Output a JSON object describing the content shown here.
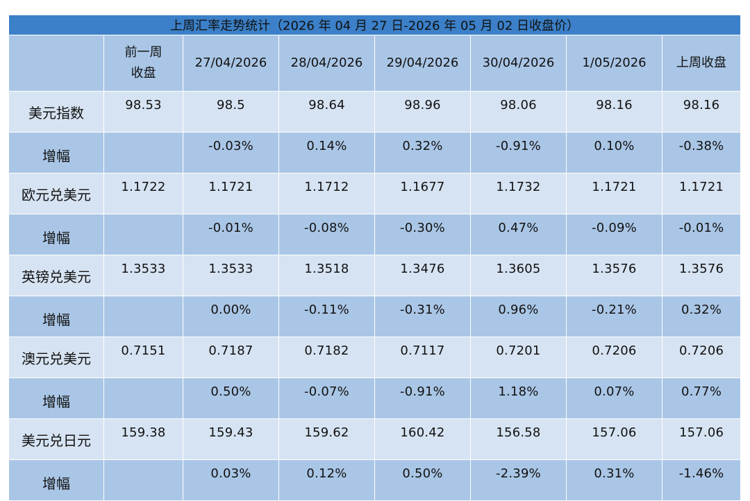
{
  "title": "上周汇率走势统计（2026 年 04 月 27 日-2026 年 05 月 02 日收盘价）",
  "columns": {
    "label": "",
    "prev_week": "前一周收盘",
    "d1": "27/04/2026",
    "d2": "28/04/2026",
    "d3": "29/04/2026",
    "d4": "30/04/2026",
    "d5": "1/05/2026",
    "last_week": "上周收盘"
  },
  "rows": {
    "r0": {
      "label": "美元指数",
      "v0": "98.53",
      "v1": "98.5",
      "v2": "98.64",
      "v3": "98.96",
      "v4": "98.06",
      "v5": "98.16",
      "v6": "98.16"
    },
    "r1": {
      "label": "增幅",
      "v0": "",
      "v1": "-0.03%",
      "v2": "0.14%",
      "v3": "0.32%",
      "v4": "-0.91%",
      "v5": "0.10%",
      "v6": "-0.38%"
    },
    "r2": {
      "label": "欧元兑美元",
      "v0": "1.1722",
      "v1": "1.1721",
      "v2": "1.1712",
      "v3": "1.1677",
      "v4": "1.1732",
      "v5": "1.1721",
      "v6": "1.1721"
    },
    "r3": {
      "label": "增幅",
      "v0": "",
      "v1": "-0.01%",
      "v2": "-0.08%",
      "v3": "-0.30%",
      "v4": "0.47%",
      "v5": "-0.09%",
      "v6": "-0.01%"
    },
    "r4": {
      "label": "英镑兑美元",
      "v0": "1.3533",
      "v1": "1.3533",
      "v2": "1.3518",
      "v3": "1.3476",
      "v4": "1.3605",
      "v5": "1.3576",
      "v6": "1.3576"
    },
    "r5": {
      "label": "增幅",
      "v0": "",
      "v1": "0.00%",
      "v2": "-0.11%",
      "v3": "-0.31%",
      "v4": "0.96%",
      "v5": "-0.21%",
      "v6": "0.32%"
    },
    "r6": {
      "label": "澳元兑美元",
      "v0": "0.7151",
      "v1": "0.7187",
      "v2": "0.7182",
      "v3": "0.7117",
      "v4": "0.7201",
      "v5": "0.7206",
      "v6": "0.7206"
    },
    "r7": {
      "label": "增幅",
      "v0": "",
      "v1": "0.50%",
      "v2": "-0.07%",
      "v3": "-0.91%",
      "v4": "1.18%",
      "v5": "0.07%",
      "v6": "0.77%"
    },
    "r8": {
      "label": "美元兑日元",
      "v0": "159.38",
      "v1": "159.43",
      "v2": "159.62",
      "v3": "160.42",
      "v4": "156.58",
      "v5": "157.06",
      "v6": "157.06"
    },
    "r9": {
      "label": "增幅",
      "v0": "",
      "v1": "0.03%",
      "v2": "0.12%",
      "v3": "0.50%",
      "v4": "-2.39%",
      "v5": "0.31%",
      "v6": "-1.46%"
    }
  },
  "colors": {
    "title_bg": "#3b80c8",
    "header_bg": "#aac6e6",
    "row_light": "#d6e3f2",
    "row_dark": "#aac6e6"
  }
}
